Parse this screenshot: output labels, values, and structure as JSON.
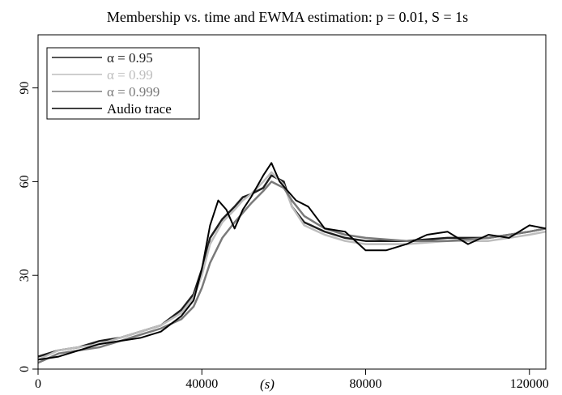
{
  "chart_data": {
    "type": "line",
    "title": "Membership vs. time and EWMA estimation: p = 0.01, S = 1s",
    "xlabel": "(s)",
    "ylabel": "",
    "xlim": [
      0,
      124000
    ],
    "ylim": [
      0,
      107
    ],
    "x_ticks": [
      0,
      40000,
      80000,
      120000
    ],
    "x_tick_labels": [
      "0",
      "40000",
      "80000",
      "120000"
    ],
    "y_ticks": [
      0,
      30,
      60,
      90
    ],
    "y_tick_labels": [
      "0",
      "30",
      "60",
      "90"
    ],
    "grid": false,
    "legend_position": "top-left",
    "series": [
      {
        "name": "α = 0.95",
        "color": "#1e1e1e",
        "x": [
          0,
          5000,
          10000,
          15000,
          20000,
          25000,
          30000,
          35000,
          38000,
          40000,
          42000,
          45000,
          48000,
          50000,
          52000,
          55000,
          57000,
          60000,
          62000,
          65000,
          70000,
          75000,
          80000,
          90000,
          100000,
          110000,
          120000,
          124000
        ],
        "y": [
          4,
          6,
          7,
          9,
          10,
          12,
          14,
          19,
          24,
          32,
          42,
          48,
          52,
          55,
          56,
          58,
          62,
          60,
          52,
          47,
          44,
          42,
          41,
          41,
          42,
          42,
          44,
          45
        ]
      },
      {
        "name": "α = 0.99",
        "color": "#bdbdbd",
        "x": [
          0,
          5000,
          10000,
          15000,
          20000,
          25000,
          30000,
          35000,
          38000,
          40000,
          42000,
          45000,
          48000,
          50000,
          52000,
          55000,
          57000,
          60000,
          62000,
          65000,
          70000,
          75000,
          80000,
          90000,
          100000,
          110000,
          120000,
          124000
        ],
        "y": [
          3,
          6,
          7,
          8,
          10,
          12,
          14,
          18,
          23,
          30,
          40,
          47,
          51,
          54,
          56,
          60,
          63,
          59,
          52,
          46,
          43,
          41,
          40,
          40,
          41,
          41,
          43,
          44
        ]
      },
      {
        "name": "α = 0.999",
        "color": "#7a7a7a",
        "x": [
          0,
          5000,
          10000,
          15000,
          20000,
          25000,
          30000,
          35000,
          38000,
          40000,
          42000,
          45000,
          48000,
          50000,
          52000,
          55000,
          57000,
          60000,
          62000,
          65000,
          70000,
          75000,
          80000,
          90000,
          100000,
          110000,
          120000,
          124000
        ],
        "y": [
          2,
          5,
          6,
          7,
          9,
          11,
          13,
          16,
          20,
          26,
          34,
          42,
          47,
          50,
          53,
          57,
          60,
          58,
          54,
          49,
          45,
          43,
          42,
          41,
          41,
          42,
          44,
          45
        ]
      },
      {
        "name": "Audio trace",
        "color": "#000000",
        "x": [
          0,
          5000,
          10000,
          15000,
          20000,
          25000,
          30000,
          35000,
          38000,
          40000,
          42000,
          44000,
          46000,
          48000,
          50000,
          52000,
          55000,
          57000,
          59000,
          61000,
          63000,
          66000,
          70000,
          75000,
          80000,
          85000,
          90000,
          95000,
          100000,
          105000,
          110000,
          115000,
          120000,
          124000
        ],
        "y": [
          3,
          4,
          6,
          8,
          9,
          10,
          12,
          17,
          22,
          32,
          46,
          54,
          51,
          45,
          51,
          55,
          62,
          66,
          60,
          57,
          54,
          52,
          45,
          44,
          38,
          38,
          40,
          43,
          44,
          40,
          43,
          42,
          46,
          45
        ]
      }
    ]
  }
}
